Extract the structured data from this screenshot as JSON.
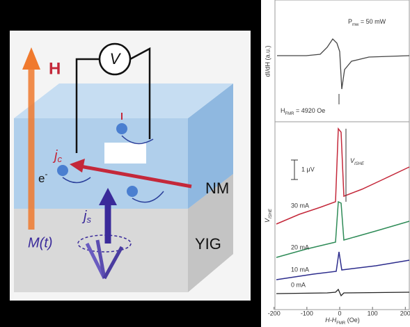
{
  "diagram": {
    "field": "H",
    "voltmeter": "V",
    "charge_current": "j",
    "charge_current_sub": "c",
    "electron": "e",
    "electron_sup": "-",
    "top_layer": "NM",
    "spin_current": "j",
    "spin_current_sub": "s",
    "magnetization": "M(t)",
    "bottom_layer": "YIG"
  },
  "top_plot": {
    "y_label": "dI/dH (a.u.)",
    "power": "P",
    "power_sub": "mw",
    "power_value": " = 50 mW",
    "field": "H",
    "field_sub": "FMR",
    "field_value": " = 4920 Oe"
  },
  "bottom_plot": {
    "scale_bar": "1 μV",
    "peak_label": "V",
    "peak_sub": "ISHE",
    "y_label": "V",
    "y_sub": "ISHE",
    "currents": [
      "30 mA",
      "20 mA",
      "10 mA",
      "0 mA"
    ],
    "x_label": "H-H",
    "x_sub": "FMR",
    "x_unit": " (Oe)",
    "xlim": [
      -210,
      210
    ],
    "xticks": [
      -200,
      -100,
      0,
      100,
      200
    ]
  }
}
